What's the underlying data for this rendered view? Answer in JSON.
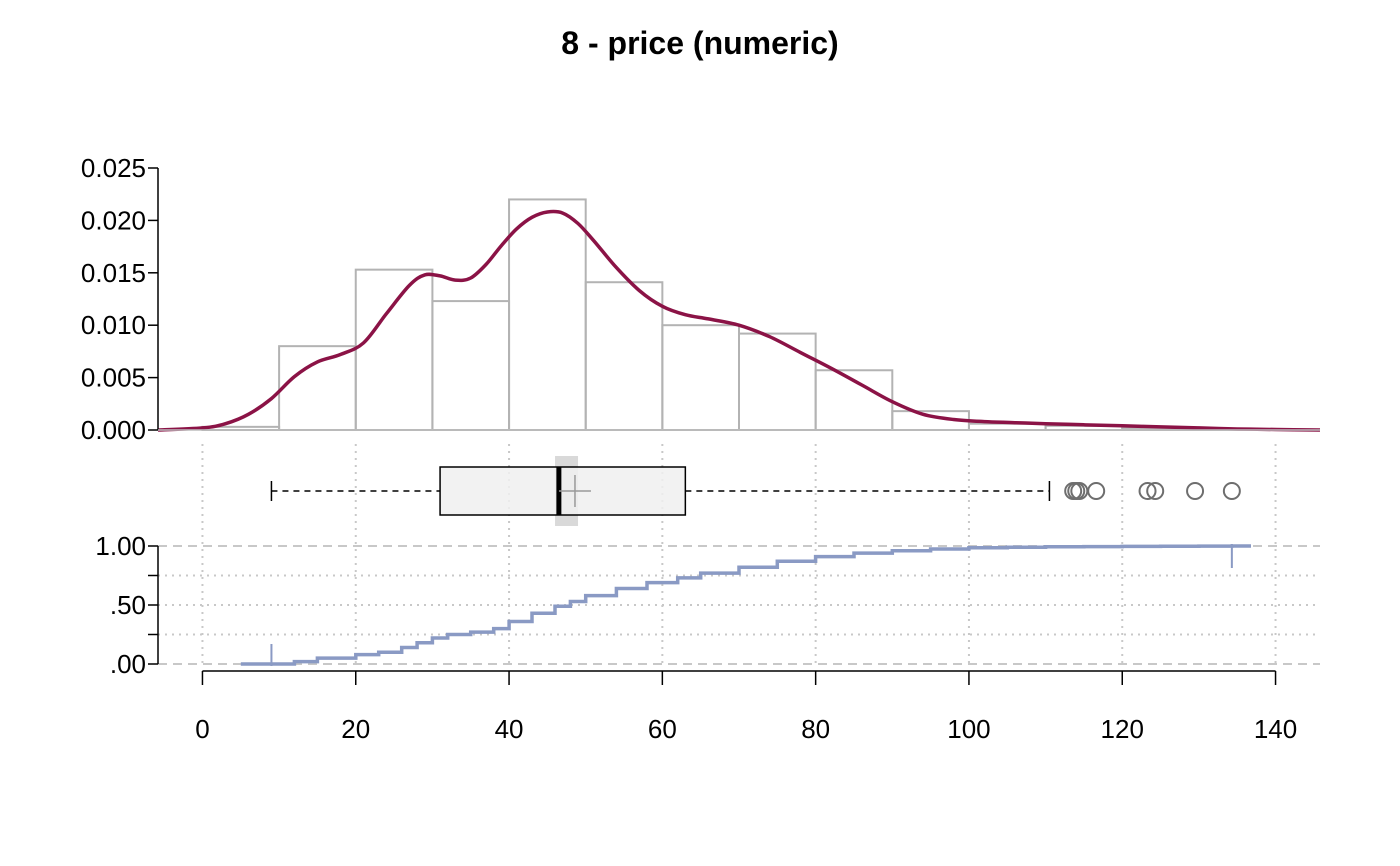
{
  "chart_data": {
    "title": "8 - price (numeric)",
    "type": "histogram-density-boxplot-ecdf",
    "x_axis": {
      "range": [
        -5.8,
        145.8
      ],
      "ticks": [
        0,
        20,
        40,
        60,
        80,
        100,
        120,
        140
      ],
      "tick_labels": [
        "0",
        "20",
        "40",
        "60",
        "80",
        "100",
        "120",
        "140"
      ],
      "grid": true
    },
    "histogram": {
      "type": "bar",
      "ylim": [
        0,
        0.025
      ],
      "y_ticks": [
        0.0,
        0.005,
        0.01,
        0.015,
        0.02,
        0.025
      ],
      "y_tick_labels": [
        "0.000",
        "0.005",
        "0.010",
        "0.015",
        "0.020",
        "0.025"
      ],
      "bins": [
        {
          "from": 0,
          "to": 10,
          "density": 0.0003
        },
        {
          "from": 10,
          "to": 20,
          "density": 0.008
        },
        {
          "from": 20,
          "to": 30,
          "density": 0.0153
        },
        {
          "from": 30,
          "to": 40,
          "density": 0.0123
        },
        {
          "from": 40,
          "to": 50,
          "density": 0.022
        },
        {
          "from": 50,
          "to": 60,
          "density": 0.0141
        },
        {
          "from": 60,
          "to": 70,
          "density": 0.01
        },
        {
          "from": 70,
          "to": 80,
          "density": 0.0092
        },
        {
          "from": 80,
          "to": 90,
          "density": 0.0057
        },
        {
          "from": 90,
          "to": 100,
          "density": 0.0018
        },
        {
          "from": 100,
          "to": 110,
          "density": 0.0006
        },
        {
          "from": 110,
          "to": 120,
          "density": 0.0004
        },
        {
          "from": 120,
          "to": 130,
          "density": 0.0002
        },
        {
          "from": 130,
          "to": 140,
          "density": 0.0001
        }
      ],
      "colors": {
        "bar_outline": "#b3b3b3"
      }
    },
    "density": {
      "type": "line",
      "color": "#8b1346",
      "x": [
        -5.8,
        0,
        3,
        6,
        9,
        12,
        15,
        18,
        21,
        24,
        27,
        29,
        31,
        33,
        35,
        37,
        39,
        41,
        43,
        45,
        47,
        49,
        51,
        54,
        57,
        60,
        63,
        66,
        70,
        74,
        78,
        82,
        86,
        90,
        94,
        98,
        102,
        106,
        110,
        115,
        120,
        125,
        130,
        135,
        140,
        145.8
      ],
      "y": [
        0.0,
        0.0002,
        0.0006,
        0.0015,
        0.003,
        0.0051,
        0.0065,
        0.0072,
        0.0083,
        0.0111,
        0.0138,
        0.0148,
        0.0147,
        0.0143,
        0.0145,
        0.0158,
        0.0176,
        0.0192,
        0.0203,
        0.0208,
        0.0207,
        0.0197,
        0.0181,
        0.0155,
        0.0133,
        0.0118,
        0.011,
        0.0106,
        0.01,
        0.0089,
        0.0074,
        0.0059,
        0.0043,
        0.0027,
        0.0015,
        0.001,
        0.0008,
        0.0007,
        0.0006,
        0.0005,
        0.0004,
        0.0003,
        0.0002,
        0.0001,
        5e-05,
        0.0
      ]
    },
    "boxplot": {
      "type": "box",
      "whisker_low": 9,
      "q1": 31,
      "median": 46.5,
      "q3": 63,
      "whisker_high": 110.5,
      "mean": 48.6,
      "median_ci": [
        46,
        49
      ],
      "outliers": [
        113.6,
        114,
        114.4,
        116.6,
        123.3,
        124.3,
        129.5,
        134.3
      ],
      "colors": {
        "box_fill": "#f0f0f0",
        "ci_band": "#d9d9d9",
        "outlier": "#6e6e6e",
        "mean_marker": "#999999"
      }
    },
    "ecdf": {
      "type": "line",
      "color": "#8a9ac4",
      "ylim": [
        0,
        1
      ],
      "y_ticks": [
        0.0,
        0.25,
        0.5,
        0.75,
        1.0
      ],
      "y_tick_labels": [
        ".00",
        "",
        ".50",
        "",
        "1.00"
      ],
      "x": [
        9,
        12,
        15,
        20,
        23,
        26,
        28,
        30,
        32,
        35,
        38,
        40,
        43,
        46,
        48,
        50,
        54,
        58,
        62,
        65,
        70,
        75,
        80,
        85,
        90,
        95,
        100,
        105,
        110,
        115,
        120,
        125,
        130,
        134.3
      ],
      "y": [
        0.0,
        0.02,
        0.05,
        0.08,
        0.1,
        0.14,
        0.18,
        0.22,
        0.25,
        0.27,
        0.3,
        0.36,
        0.43,
        0.49,
        0.53,
        0.58,
        0.64,
        0.69,
        0.73,
        0.77,
        0.82,
        0.87,
        0.91,
        0.94,
        0.96,
        0.975,
        0.985,
        0.99,
        0.993,
        0.995,
        0.997,
        0.998,
        0.999,
        1.0
      ]
    },
    "colors": {
      "grid": "#c8c8c8",
      "axis": "#000000"
    }
  }
}
